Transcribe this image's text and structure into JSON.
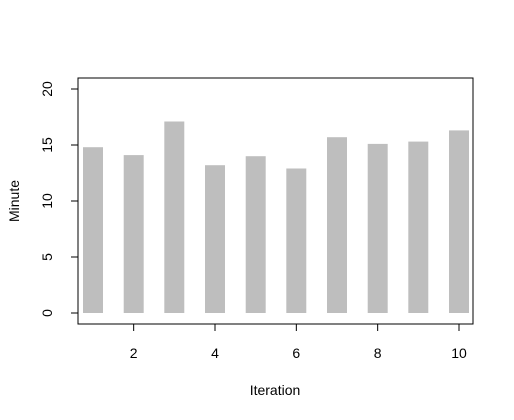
{
  "chart_data": {
    "type": "bar",
    "x": [
      1,
      2,
      3,
      4,
      5,
      6,
      7,
      8,
      9,
      10
    ],
    "values": [
      14.8,
      14.1,
      17.1,
      13.2,
      14.0,
      12.9,
      15.7,
      15.1,
      15.3,
      16.3
    ],
    "xlabel": "Iteration",
    "ylabel": "Minute",
    "xlim": [
      0.7,
      10.3
    ],
    "ylim": [
      0,
      20
    ],
    "x_ticks": [
      "2",
      "4",
      "6",
      "8",
      "10"
    ],
    "y_ticks": [
      "0",
      "5",
      "10",
      "15",
      "20"
    ],
    "grid": false,
    "legend": "none",
    "bar_color": "#bebebe"
  }
}
